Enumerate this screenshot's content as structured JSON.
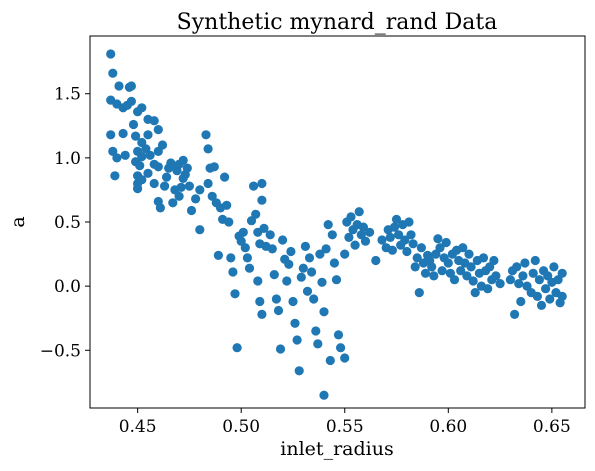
{
  "chart_data": {
    "type": "scatter",
    "title": "Synthetic mynard_rand Data",
    "xlabel": "inlet_radius",
    "ylabel": "a",
    "xlim": [
      0.427,
      0.666
    ],
    "ylim": [
      -0.95,
      1.95
    ],
    "xticks": [
      0.45,
      0.5,
      0.55,
      0.6,
      0.65
    ],
    "xtick_labels": [
      "0.45",
      "0.50",
      "0.55",
      "0.60",
      "0.65"
    ],
    "yticks": [
      -0.5,
      0.0,
      0.5,
      1.0,
      1.5
    ],
    "ytick_labels": [
      "−0.5",
      "0.0",
      "0.5",
      "1.0",
      "1.5"
    ],
    "grid": false,
    "marker_color": "#1f77b4",
    "series": [
      {
        "points": [
          [
            0.437,
            1.81
          ],
          [
            0.438,
            1.66
          ],
          [
            0.441,
            1.56
          ],
          [
            0.446,
            1.55
          ],
          [
            0.447,
            1.56
          ],
          [
            0.437,
            1.45
          ],
          [
            0.44,
            1.42
          ],
          [
            0.443,
            1.39
          ],
          [
            0.445,
            1.41
          ],
          [
            0.447,
            1.44
          ],
          [
            0.45,
            1.36
          ],
          [
            0.452,
            1.39
          ],
          [
            0.437,
            1.18
          ],
          [
            0.443,
            1.19
          ],
          [
            0.438,
            1.05
          ],
          [
            0.44,
            1.0
          ],
          [
            0.444,
            1.02
          ],
          [
            0.439,
            0.86
          ],
          [
            0.448,
            1.26
          ],
          [
            0.455,
            1.3
          ],
          [
            0.458,
            1.29
          ],
          [
            0.46,
            1.22
          ],
          [
            0.449,
            1.17
          ],
          [
            0.452,
            1.12
          ],
          [
            0.455,
            1.18
          ],
          [
            0.45,
            1.05
          ],
          [
            0.452,
            1.01
          ],
          [
            0.454,
            1.07
          ],
          [
            0.456,
            1.02
          ],
          [
            0.449,
            0.97
          ],
          [
            0.451,
            0.94
          ],
          [
            0.45,
            0.86
          ],
          [
            0.45,
            0.8
          ],
          [
            0.45,
            0.76
          ],
          [
            0.452,
            0.83
          ],
          [
            0.455,
            0.88
          ],
          [
            0.458,
            0.95
          ],
          [
            0.46,
            1.05
          ],
          [
            0.462,
            1.1
          ],
          [
            0.46,
            0.93
          ],
          [
            0.458,
            0.8
          ],
          [
            0.46,
            0.66
          ],
          [
            0.461,
            0.61
          ],
          [
            0.463,
            0.78
          ],
          [
            0.464,
            0.85
          ],
          [
            0.465,
            0.92
          ],
          [
            0.466,
            0.96
          ],
          [
            0.468,
            0.93
          ],
          [
            0.469,
            0.9
          ],
          [
            0.47,
            0.95
          ],
          [
            0.472,
            0.98
          ],
          [
            0.473,
            0.87
          ],
          [
            0.467,
            0.65
          ],
          [
            0.468,
            0.75
          ],
          [
            0.47,
            0.7
          ],
          [
            0.471,
            0.77
          ],
          [
            0.472,
            0.84
          ],
          [
            0.474,
            0.92
          ],
          [
            0.475,
            0.78
          ],
          [
            0.476,
            0.59
          ],
          [
            0.478,
            0.68
          ],
          [
            0.48,
            0.75
          ],
          [
            0.48,
            0.44
          ],
          [
            0.483,
            1.18
          ],
          [
            0.484,
            1.07
          ],
          [
            0.485,
            0.92
          ],
          [
            0.484,
            0.8
          ],
          [
            0.486,
            0.7
          ],
          [
            0.487,
            0.93
          ],
          [
            0.488,
            0.65
          ],
          [
            0.489,
            0.24
          ],
          [
            0.49,
            0.61
          ],
          [
            0.491,
            0.52
          ],
          [
            0.492,
            0.85
          ],
          [
            0.493,
            0.63
          ],
          [
            0.494,
            0.5
          ],
          [
            0.495,
            0.22
          ],
          [
            0.496,
            0.11
          ],
          [
            0.497,
            -0.06
          ],
          [
            0.498,
            -0.48
          ],
          [
            0.499,
            0.39
          ],
          [
            0.5,
            0.35
          ],
          [
            0.501,
            0.42
          ],
          [
            0.502,
            0.3
          ],
          [
            0.503,
            0.22
          ],
          [
            0.504,
            0.14
          ],
          [
            0.505,
            0.51
          ],
          [
            0.506,
            0.78
          ],
          [
            0.507,
            0.56
          ],
          [
            0.508,
            0.42
          ],
          [
            0.509,
            0.33
          ],
          [
            0.51,
            0.8
          ],
          [
            0.51,
            0.67
          ],
          [
            0.508,
            0.04
          ],
          [
            0.509,
            -0.12
          ],
          [
            0.51,
            -0.22
          ],
          [
            0.511,
            0.45
          ],
          [
            0.512,
            0.31
          ],
          [
            0.514,
            0.4
          ],
          [
            0.515,
            0.29
          ],
          [
            0.516,
            0.09
          ],
          [
            0.517,
            -0.1
          ],
          [
            0.518,
            -0.19
          ],
          [
            0.519,
            -0.49
          ],
          [
            0.52,
            0.36
          ],
          [
            0.521,
            0.21
          ],
          [
            0.522,
            0.04
          ],
          [
            0.523,
            0.17
          ],
          [
            0.524,
            0.27
          ],
          [
            0.525,
            -0.12
          ],
          [
            0.526,
            -0.29
          ],
          [
            0.527,
            -0.42
          ],
          [
            0.528,
            -0.66
          ],
          [
            0.529,
            0.07
          ],
          [
            0.53,
            0.14
          ],
          [
            0.531,
            0.31
          ],
          [
            0.532,
            -0.04
          ],
          [
            0.533,
            0.22
          ],
          [
            0.534,
            0.11
          ],
          [
            0.535,
            -0.1
          ],
          [
            0.536,
            -0.35
          ],
          [
            0.537,
            -0.45
          ],
          [
            0.538,
            0.25
          ],
          [
            0.539,
            0.03
          ],
          [
            0.54,
            -0.2
          ],
          [
            0.541,
            0.29
          ],
          [
            0.542,
            0.48
          ],
          [
            0.54,
            -0.85
          ],
          [
            0.543,
            -0.58
          ],
          [
            0.544,
            0.4
          ],
          [
            0.545,
            0.18
          ],
          [
            0.546,
            0.05
          ],
          [
            0.547,
            -0.38
          ],
          [
            0.548,
            -0.48
          ],
          [
            0.55,
            -0.56
          ],
          [
            0.55,
            0.25
          ],
          [
            0.551,
            0.5
          ],
          [
            0.552,
            0.38
          ],
          [
            0.553,
            0.54
          ],
          [
            0.554,
            0.44
          ],
          [
            0.555,
            0.32
          ],
          [
            0.556,
            0.48
          ],
          [
            0.557,
            0.58
          ],
          [
            0.558,
            0.4
          ],
          [
            0.559,
            0.46
          ],
          [
            0.56,
            0.35
          ],
          [
            0.562,
            0.42
          ],
          [
            0.565,
            0.2
          ],
          [
            0.568,
            0.36
          ],
          [
            0.57,
            0.3
          ],
          [
            0.571,
            0.44
          ],
          [
            0.572,
            0.38
          ],
          [
            0.573,
            0.28
          ],
          [
            0.574,
            0.46
          ],
          [
            0.575,
            0.52
          ],
          [
            0.576,
            0.4
          ],
          [
            0.577,
            0.32
          ],
          [
            0.578,
            0.48
          ],
          [
            0.579,
            0.36
          ],
          [
            0.58,
            0.27
          ],
          [
            0.581,
            0.5
          ],
          [
            0.582,
            0.4
          ],
          [
            0.583,
            0.33
          ],
          [
            0.584,
            0.15
          ],
          [
            0.585,
            0.22
          ],
          [
            0.586,
            -0.05
          ],
          [
            0.587,
            0.3
          ],
          [
            0.588,
            0.18
          ],
          [
            0.589,
            0.1
          ],
          [
            0.59,
            0.24
          ],
          [
            0.591,
            0.2
          ],
          [
            0.592,
            0.15
          ],
          [
            0.593,
            0.08
          ],
          [
            0.594,
            0.25
          ],
          [
            0.595,
            0.37
          ],
          [
            0.596,
            0.3
          ],
          [
            0.597,
            0.12
          ],
          [
            0.598,
            0.22
          ],
          [
            0.599,
            0.34
          ],
          [
            0.6,
            0.18
          ],
          [
            0.601,
            0.1
          ],
          [
            0.602,
            0.25
          ],
          [
            0.603,
            0.05
          ],
          [
            0.604,
            0.28
          ],
          [
            0.605,
            0.2
          ],
          [
            0.606,
            0.12
          ],
          [
            0.607,
            0.3
          ],
          [
            0.608,
            0.18
          ],
          [
            0.609,
            0.08
          ],
          [
            0.61,
            0.25
          ],
          [
            0.611,
            0.15
          ],
          [
            0.612,
            0.04
          ],
          [
            0.613,
            -0.05
          ],
          [
            0.614,
            0.2
          ],
          [
            0.615,
            0.1
          ],
          [
            0.616,
            0.0
          ],
          [
            0.617,
            0.22
          ],
          [
            0.618,
            0.12
          ],
          [
            0.619,
            -0.02
          ],
          [
            0.62,
            0.15
          ],
          [
            0.621,
            0.05
          ],
          [
            0.622,
            0.2
          ],
          [
            0.623,
            0.08
          ],
          [
            0.625,
            0.02
          ],
          [
            0.63,
            0.05
          ],
          [
            0.631,
            0.12
          ],
          [
            0.632,
            -0.22
          ],
          [
            0.633,
            0.15
          ],
          [
            0.634,
            0.02
          ],
          [
            0.635,
            -0.12
          ],
          [
            0.636,
            0.08
          ],
          [
            0.637,
            0.18
          ],
          [
            0.638,
            0.0
          ],
          [
            0.64,
            -0.05
          ],
          [
            0.641,
            0.1
          ],
          [
            0.642,
            0.2
          ],
          [
            0.643,
            -0.08
          ],
          [
            0.644,
            0.05
          ],
          [
            0.645,
            -0.15
          ],
          [
            0.646,
            0.12
          ],
          [
            0.647,
            -0.02
          ],
          [
            0.648,
            0.08
          ],
          [
            0.649,
            -0.1
          ],
          [
            0.65,
            0.03
          ],
          [
            0.651,
            0.15
          ],
          [
            0.652,
            -0.05
          ],
          [
            0.653,
            0.05
          ],
          [
            0.654,
            -0.13
          ],
          [
            0.655,
            0.1
          ],
          [
            0.655,
            -0.08
          ]
        ]
      }
    ]
  }
}
